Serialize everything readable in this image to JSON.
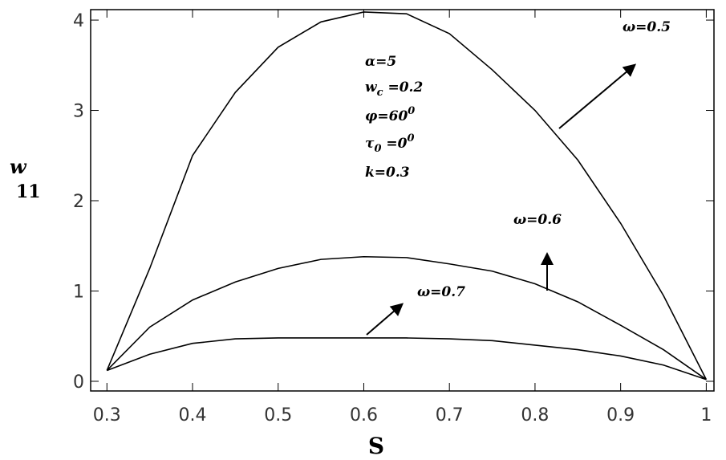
{
  "chart_data": {
    "type": "line",
    "x_label": "S",
    "y_label": "w",
    "y_label_sub": "11",
    "x": [
      0.3,
      0.35,
      0.4,
      0.45,
      0.5,
      0.55,
      0.6,
      0.65,
      0.7,
      0.75,
      0.8,
      0.85,
      0.9,
      0.95,
      1
    ],
    "series": [
      {
        "name": "ω=0.5",
        "color": "#000000",
        "values": [
          0.12,
          1.25,
          2.5,
          3.2,
          3.7,
          3.98,
          4.09,
          4.07,
          3.85,
          3.45,
          3.0,
          2.45,
          1.75,
          0.95,
          0.02
        ]
      },
      {
        "name": "ω=0.6",
        "color": "#000000",
        "values": [
          0.12,
          0.6,
          0.9,
          1.1,
          1.25,
          1.35,
          1.38,
          1.37,
          1.3,
          1.22,
          1.08,
          0.88,
          0.62,
          0.35,
          0.02
        ]
      },
      {
        "name": "ω=0.7",
        "color": "#000000",
        "values": [
          0.12,
          0.3,
          0.42,
          0.47,
          0.48,
          0.48,
          0.48,
          0.48,
          0.47,
          0.45,
          0.4,
          0.35,
          0.28,
          0.18,
          0.02
        ]
      }
    ],
    "params": [
      [
        "α=5"
      ],
      [
        "w",
        "c",
        " =0.2"
      ],
      [
        "φ=60",
        "0"
      ],
      [
        "τ",
        "0",
        " =0",
        "0"
      ],
      [
        "k=0.3"
      ]
    ],
    "xlim": [
      0.281,
      1.009
    ],
    "ylim": [
      -0.107,
      4.116
    ],
    "xticks": [
      0.3,
      0.4,
      0.5,
      0.6,
      0.7,
      0.8,
      0.9,
      1
    ],
    "yticks": [
      0,
      1,
      2,
      3,
      4
    ]
  }
}
